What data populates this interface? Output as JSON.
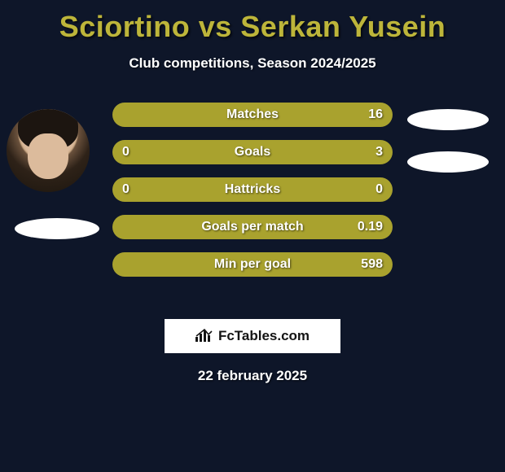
{
  "title": {
    "text": "Sciortino vs Serkan Yusein",
    "color": "#bdb53a",
    "fontsize": 36,
    "fontweight": 800
  },
  "subtitle": {
    "text": "Club competitions, Season 2024/2025",
    "color": "#ffffff",
    "fontsize": 17
  },
  "background_color": "#0e1629",
  "players": {
    "left": {
      "name": "Sciortino",
      "has_photo": true
    },
    "right": {
      "name": "Serkan Yusein",
      "has_photo": false
    }
  },
  "bars": {
    "track_color": "#a9a22e",
    "left_fill_color": "#ffffff",
    "right_fill_color": "#ffffff",
    "height": 30,
    "radius": 15,
    "gap": 16,
    "label_fontsize": 16,
    "value_fontsize": 16,
    "text_color": "#ffffff",
    "items": [
      {
        "label": "Matches",
        "left_value": "",
        "right_value": "16",
        "left_pct": 0,
        "right_pct": 0
      },
      {
        "label": "Goals",
        "left_value": "0",
        "right_value": "3",
        "left_pct": 0,
        "right_pct": 0
      },
      {
        "label": "Hattricks",
        "left_value": "0",
        "right_value": "0",
        "left_pct": 0,
        "right_pct": 0
      },
      {
        "label": "Goals per match",
        "left_value": "",
        "right_value": "0.19",
        "left_pct": 0,
        "right_pct": 0
      },
      {
        "label": "Min per goal",
        "left_value": "",
        "right_value": "598",
        "left_pct": 0,
        "right_pct": 0
      }
    ]
  },
  "ovals": {
    "color": "#ffffff"
  },
  "footer": {
    "logo_text": "FcTables.com",
    "logo_bg": "#ffffff",
    "logo_fg": "#141414",
    "date": "22 february 2025",
    "date_fontsize": 17
  }
}
